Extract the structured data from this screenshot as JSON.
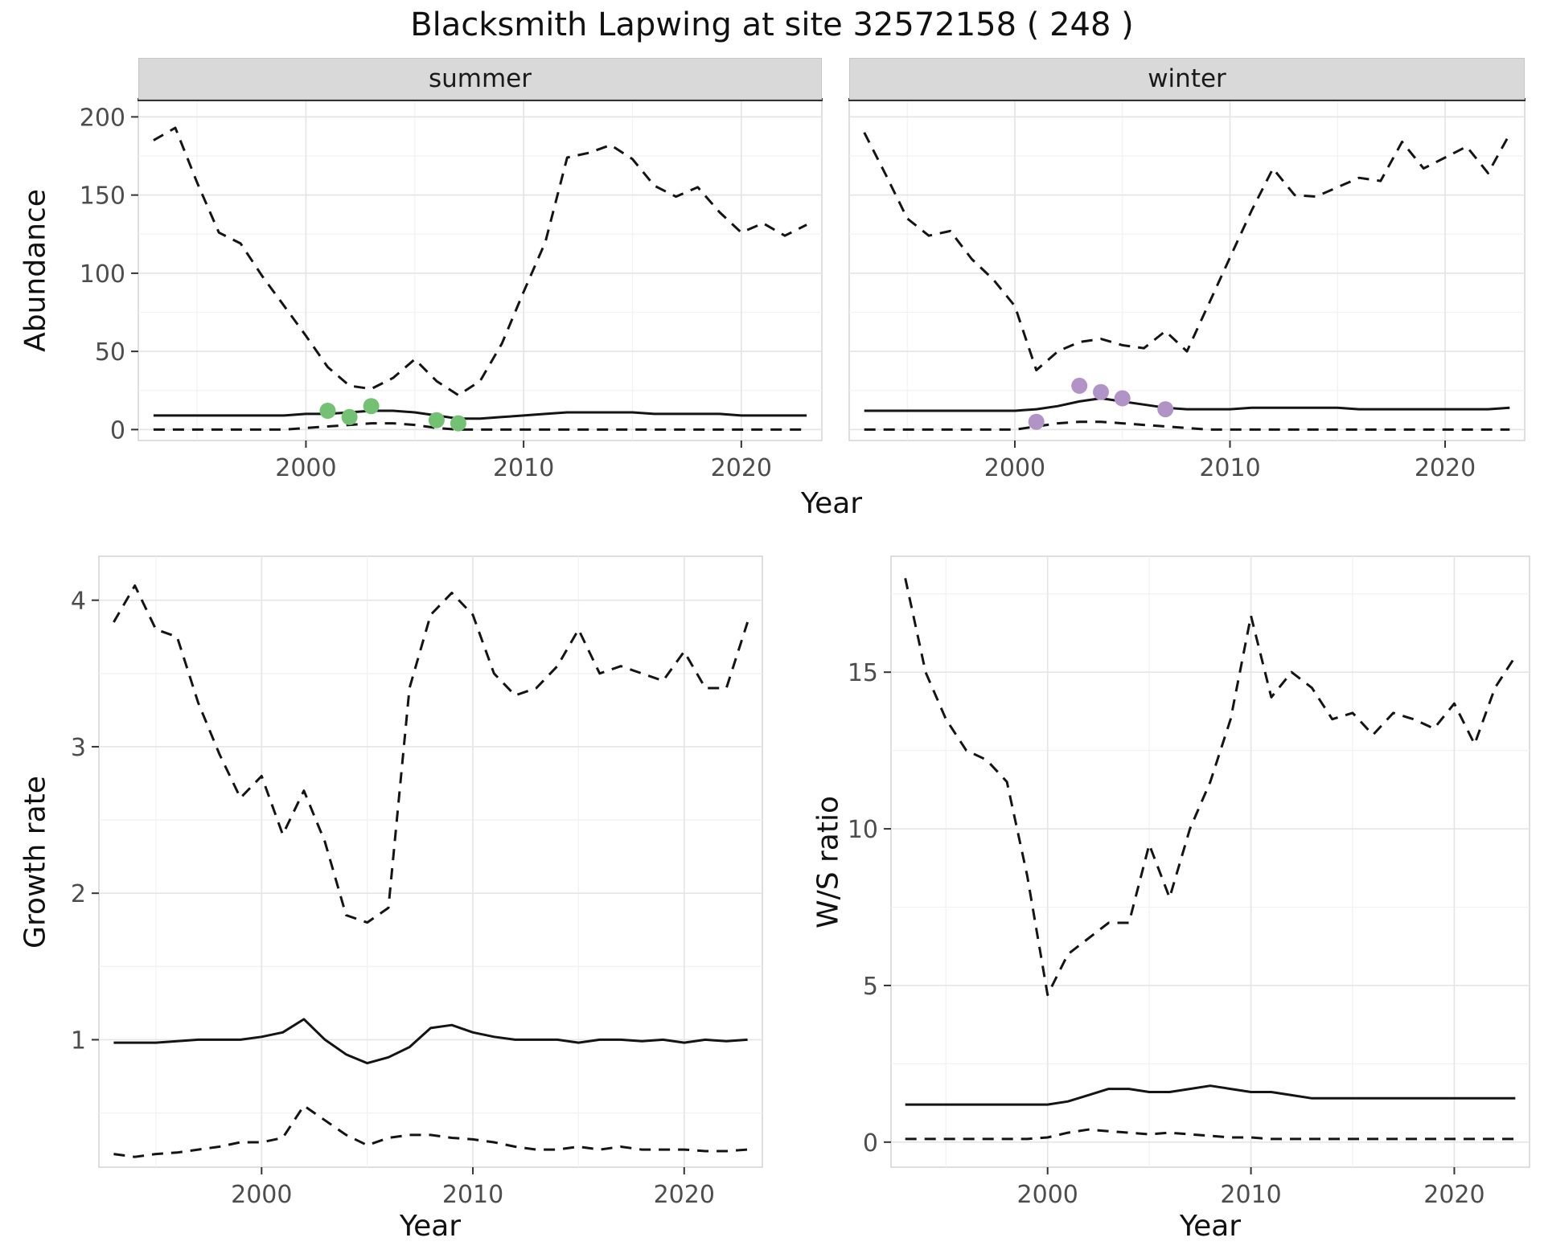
{
  "title": "Blacksmith Lapwing at site 32572158 ( 248 )",
  "facets": {
    "summer": "summer",
    "winter": "winter"
  },
  "axis_titles": {
    "abundance": "Abundance",
    "year_top": "Year",
    "growth": "Growth rate",
    "year_bottom_left": "Year",
    "ws": "W/S ratio",
    "year_bottom_right": "Year"
  },
  "colors": {
    "line": "#141414",
    "grid_major": "#e5e5e5",
    "grid_minor": "#f2f2f2",
    "panel_border": "#d4d4d4",
    "strip_bg": "#d9d9d9",
    "strip_border_dark": "#333333",
    "tick_label": "#4d4d4d",
    "tick_mark": "#333333",
    "summer_points": "#73c173",
    "winter_points": "#b293c8"
  },
  "chart_data": {
    "type": "line",
    "years": [
      1993,
      1994,
      1995,
      1996,
      1997,
      1998,
      1999,
      2000,
      2001,
      2002,
      2003,
      2004,
      2005,
      2006,
      2007,
      2008,
      2009,
      2010,
      2011,
      2012,
      2013,
      2014,
      2015,
      2016,
      2017,
      2018,
      2019,
      2020,
      2021,
      2022,
      2023
    ],
    "panels": [
      {
        "id": "summer",
        "facet": "summer",
        "ylabel": "Abundance",
        "xlabel": "Year",
        "xlim": [
          1992.3,
          2023.7
        ],
        "ylim": [
          -7,
          211
        ],
        "xticks": [
          2000,
          2010,
          2020
        ],
        "yticks": [
          0,
          50,
          100,
          150,
          200
        ],
        "xminor": [
          1995,
          2005,
          2015
        ],
        "yminor": [
          25,
          75,
          125,
          175
        ],
        "show_ylabels": true,
        "top_strip": true,
        "series": [
          {
            "name": "upper-credible-interval",
            "style": "dashed",
            "values": [
              185,
              193,
              158,
              126,
              119,
              98,
              79,
              60,
              40,
              28,
              26,
              33,
              45,
              31,
              22,
              31,
              55,
              88,
              120,
              174,
              177,
              182,
              173,
              156,
              149,
              155,
              139,
              126,
              132,
              124,
              131
            ]
          },
          {
            "name": "median-estimate",
            "style": "solid",
            "values": [
              9,
              9,
              9,
              9,
              9,
              9,
              9,
              10,
              10,
              11,
              12,
              12,
              11,
              9,
              7,
              7,
              8,
              9,
              10,
              11,
              11,
              11,
              11,
              10,
              10,
              10,
              10,
              9,
              9,
              9,
              9
            ]
          },
          {
            "name": "lower-credible-interval",
            "style": "dashed",
            "values": [
              0,
              0,
              0,
              0,
              0,
              0,
              0,
              1,
              2,
              3,
              4,
              4,
              3,
              1,
              0,
              0,
              0,
              0,
              0,
              0,
              0,
              0,
              0,
              0,
              0,
              0,
              0,
              0,
              0,
              0,
              0
            ]
          }
        ],
        "points": {
          "name": "observed-counts",
          "color_key": "summer_points",
          "data": [
            [
              2001,
              12
            ],
            [
              2002,
              8
            ],
            [
              2003,
              15
            ],
            [
              2006,
              6
            ],
            [
              2007,
              4
            ]
          ]
        }
      },
      {
        "id": "winter",
        "facet": "winter",
        "ylabel": "Abundance",
        "xlabel": "Year",
        "xlim": [
          1992.3,
          2023.7
        ],
        "ylim": [
          -7,
          211
        ],
        "xticks": [
          2000,
          2010,
          2020
        ],
        "yticks": [
          0,
          50,
          100,
          150,
          200
        ],
        "xminor": [
          1995,
          2005,
          2015
        ],
        "yminor": [
          25,
          75,
          125,
          175
        ],
        "show_ylabels": false,
        "top_strip": true,
        "series": [
          {
            "name": "upper-credible-interval",
            "style": "dashed",
            "values": [
              190,
              163,
              135,
              124,
              127,
              109,
              96,
              79,
              38,
              50,
              56,
              58,
              54,
              52,
              63,
              50,
              80,
              110,
              140,
              167,
              150,
              149,
              155,
              161,
              159,
              184,
              167,
              174,
              181,
              164,
              189
            ]
          },
          {
            "name": "median-estimate",
            "style": "solid",
            "values": [
              12,
              12,
              12,
              12,
              12,
              12,
              12,
              12,
              13,
              15,
              18,
              20,
              18,
              16,
              14,
              13,
              13,
              13,
              14,
              14,
              14,
              14,
              14,
              13,
              13,
              13,
              13,
              13,
              13,
              13,
              14
            ]
          },
          {
            "name": "lower-credible-interval",
            "style": "dashed",
            "values": [
              0,
              0,
              0,
              0,
              0,
              0,
              0,
              0,
              2,
              4,
              5,
              5,
              4,
              3,
              2,
              1,
              0,
              0,
              0,
              0,
              0,
              0,
              0,
              0,
              0,
              0,
              0,
              0,
              0,
              0,
              0
            ]
          }
        ],
        "points": {
          "name": "observed-counts",
          "color_key": "winter_points",
          "data": [
            [
              2001,
              5
            ],
            [
              2003,
              28
            ],
            [
              2004,
              24
            ],
            [
              2005,
              20
            ],
            [
              2007,
              13
            ]
          ]
        }
      },
      {
        "id": "growth",
        "facet": null,
        "ylabel": "Growth rate",
        "xlabel": "Year",
        "xlim": [
          1992.3,
          2023.7
        ],
        "ylim": [
          0.13,
          4.3
        ],
        "xticks": [
          2000,
          2010,
          2020
        ],
        "yticks": [
          1,
          2,
          3,
          4
        ],
        "xminor": [
          1995,
          2005,
          2015
        ],
        "yminor": [
          0.5,
          1.5,
          2.5,
          3.5
        ],
        "show_ylabels": true,
        "top_strip": false,
        "series": [
          {
            "name": "upper-credible-interval",
            "style": "dashed",
            "values": [
              3.85,
              4.1,
              3.8,
              3.75,
              3.3,
              2.95,
              2.65,
              2.8,
              2.4,
              2.7,
              2.35,
              1.85,
              1.8,
              1.9,
              3.4,
              3.9,
              4.05,
              3.9,
              3.5,
              3.35,
              3.4,
              3.55,
              3.8,
              3.5,
              3.55,
              3.5,
              3.45,
              3.65,
              3.4,
              3.4,
              3.85
            ]
          },
          {
            "name": "median-estimate",
            "style": "solid",
            "values": [
              0.98,
              0.98,
              0.98,
              0.99,
              1.0,
              1.0,
              1.0,
              1.02,
              1.05,
              1.14,
              1.0,
              0.9,
              0.84,
              0.88,
              0.95,
              1.08,
              1.1,
              1.05,
              1.02,
              1.0,
              1.0,
              1.0,
              0.98,
              1.0,
              1.0,
              0.99,
              1.0,
              0.98,
              1.0,
              0.99,
              1.0
            ]
          },
          {
            "name": "lower-credible-interval",
            "style": "dashed",
            "values": [
              0.22,
              0.2,
              0.22,
              0.23,
              0.25,
              0.27,
              0.3,
              0.3,
              0.33,
              0.55,
              0.45,
              0.35,
              0.28,
              0.33,
              0.35,
              0.35,
              0.33,
              0.32,
              0.3,
              0.27,
              0.25,
              0.25,
              0.27,
              0.25,
              0.27,
              0.25,
              0.25,
              0.25,
              0.24,
              0.24,
              0.25
            ]
          }
        ],
        "points": null
      },
      {
        "id": "ws",
        "facet": null,
        "ylabel": "W/S ratio",
        "xlabel": "Year",
        "xlim": [
          1992.3,
          2023.7
        ],
        "ylim": [
          -0.8,
          18.7
        ],
        "xticks": [
          2000,
          2010,
          2020
        ],
        "yticks": [
          0,
          5,
          10,
          15
        ],
        "xminor": [
          1995,
          2005,
          2015
        ],
        "yminor": [
          2.5,
          7.5,
          12.5,
          17.5
        ],
        "show_ylabels": true,
        "top_strip": false,
        "series": [
          {
            "name": "upper-credible-interval",
            "style": "dashed",
            "values": [
              18,
              15,
              13.5,
              12.5,
              12.2,
              11.5,
              8.5,
              4.7,
              6,
              6.5,
              7,
              7,
              9.5,
              7.8,
              10,
              11.5,
              13.5,
              16.8,
              14.2,
              15,
              14.5,
              13.5,
              13.7,
              13,
              13.7,
              13.5,
              13.2,
              14,
              12.7,
              14.5,
              15.5
            ]
          },
          {
            "name": "median-estimate",
            "style": "solid",
            "values": [
              1.2,
              1.2,
              1.2,
              1.2,
              1.2,
              1.2,
              1.2,
              1.2,
              1.3,
              1.5,
              1.7,
              1.7,
              1.6,
              1.6,
              1.7,
              1.8,
              1.7,
              1.6,
              1.6,
              1.5,
              1.4,
              1.4,
              1.4,
              1.4,
              1.4,
              1.4,
              1.4,
              1.4,
              1.4,
              1.4,
              1.4
            ]
          },
          {
            "name": "lower-credible-interval",
            "style": "dashed",
            "values": [
              0.1,
              0.1,
              0.1,
              0.1,
              0.1,
              0.1,
              0.1,
              0.15,
              0.3,
              0.4,
              0.35,
              0.3,
              0.25,
              0.3,
              0.25,
              0.2,
              0.15,
              0.15,
              0.1,
              0.1,
              0.1,
              0.1,
              0.1,
              0.1,
              0.1,
              0.1,
              0.1,
              0.1,
              0.1,
              0.1,
              0.1
            ]
          }
        ],
        "points": null
      }
    ]
  }
}
